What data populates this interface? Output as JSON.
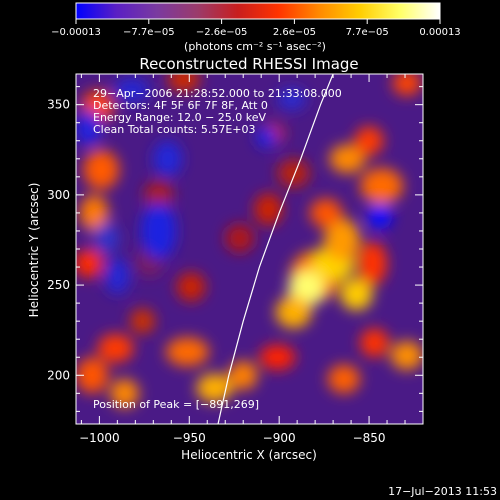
{
  "colorbar": {
    "ticks": [
      "−0.00013",
      "−7.7e−05",
      "−2.6e−05",
      "2.6e−05",
      "7.7e−05",
      "0.00013"
    ],
    "unit_label": "(photons cm⁻² s⁻¹ asec⁻²)",
    "colors": [
      "#0000ff",
      "#5a1fc4",
      "#7a3aa0",
      "#9b3b6b",
      "#c81e1e",
      "#ff3300",
      "#ff8800",
      "#ffcc00",
      "#ffff66",
      "#ffffff"
    ]
  },
  "chart_data": {
    "type": "heatmap",
    "title": "Reconstructed RHESSI Image",
    "xlabel": "Heliocentric X (arcsec)",
    "ylabel": "Heliocentric Y (arcsec)",
    "xlim": [
      -1013,
      -820
    ],
    "ylim": [
      173,
      367
    ],
    "x_ticks": [
      -1000,
      -950,
      -900,
      -850
    ],
    "y_ticks": [
      200,
      250,
      300,
      350
    ],
    "x_tick_labels": [
      "−1000",
      "−950",
      "−900",
      "−850"
    ],
    "y_tick_labels": [
      "200",
      "250",
      "300",
      "350"
    ],
    "limb_curve": [
      [
        -934,
        173
      ],
      [
        -928,
        200
      ],
      [
        -920,
        230
      ],
      [
        -911,
        260
      ],
      [
        -900,
        290
      ],
      [
        -888,
        320
      ],
      [
        -877,
        350
      ],
      [
        -870,
        367
      ]
    ],
    "annotations": [
      "29−Apr−2006 21:28:52.000 to 21:33:08.000",
      "Detectors: 4F 5F 6F 7F 8F, Att 0",
      "Energy Range: 12.0 − 25.0 keV",
      "Clean    Total counts: 5.57E+03"
    ],
    "peak_label": "Position of Peak = [−891,269]",
    "peak": [
      -891,
      269
    ],
    "colors": {
      "background": "#4a1a86",
      "limb": "#ffffff"
    }
  },
  "footer": {
    "timestamp": "17−Jul−2013 11:53"
  }
}
